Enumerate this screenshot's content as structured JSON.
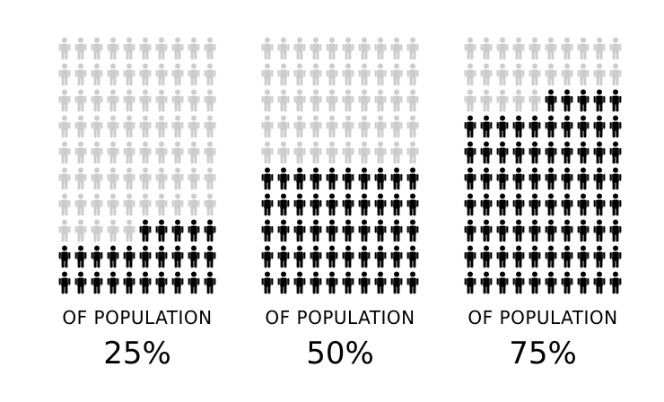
{
  "chart_data": [
    {
      "type": "pictogram",
      "icon": "person-icon",
      "total_icons": 100,
      "columns": 10,
      "rows": 10,
      "filled_fraction": 0.25,
      "label": "OF POPULATION",
      "value_label": "25%"
    },
    {
      "type": "pictogram",
      "icon": "person-icon",
      "total_icons": 100,
      "columns": 10,
      "rows": 10,
      "filled_fraction": 0.5,
      "label": "OF POPULATION",
      "value_label": "50%"
    },
    {
      "type": "pictogram",
      "icon": "person-icon",
      "total_icons": 100,
      "columns": 10,
      "rows": 10,
      "filled_fraction": 0.75,
      "label": "OF POPULATION",
      "value_label": "75%"
    }
  ],
  "colors": {
    "filled": "#000000",
    "empty": "#cccccc"
  }
}
